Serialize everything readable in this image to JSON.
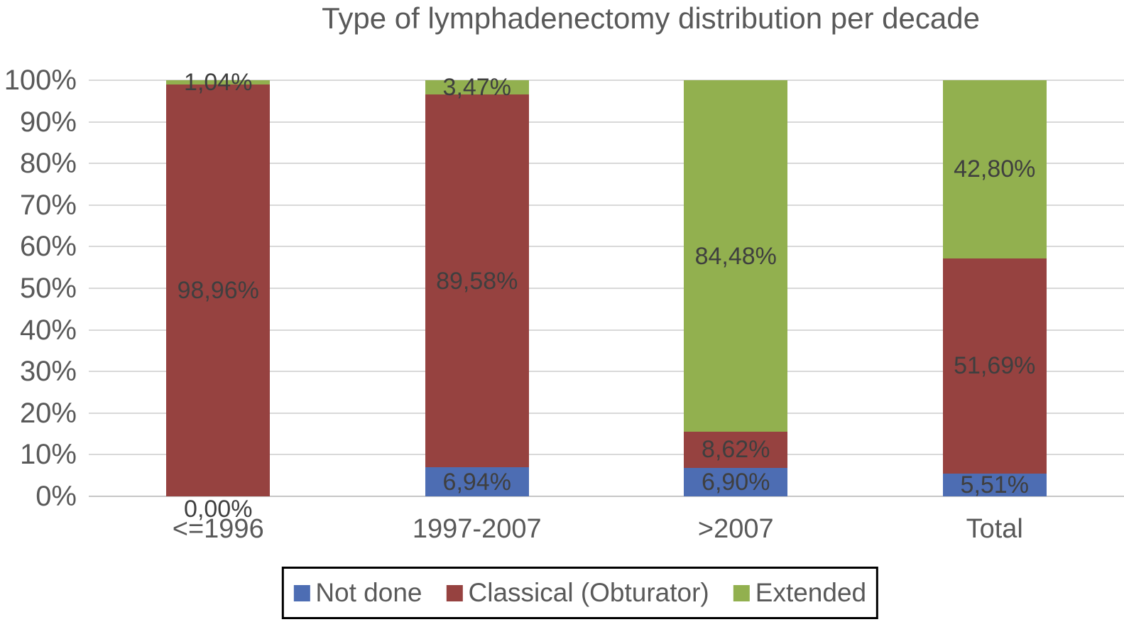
{
  "chart_data": {
    "type": "bar",
    "stacked": true,
    "orientation": "vertical",
    "title": "Type of lymphadenectomy distribution per decade",
    "categories": [
      "<=1996",
      "1997-2007",
      ">2007",
      "Total"
    ],
    "series": [
      {
        "name": "Not done",
        "color": "#4d6db3",
        "values": [
          0.0,
          6.94,
          6.9,
          5.51
        ],
        "labels": [
          "0,00%",
          "6,94%",
          "6,90%",
          "5,51%"
        ]
      },
      {
        "name": "Classical (Obturator)",
        "color": "#964240",
        "values": [
          98.96,
          89.58,
          8.62,
          51.69
        ],
        "labels": [
          "98,96%",
          "89,58%",
          "8,62%",
          "51,69%"
        ]
      },
      {
        "name": "Extended",
        "color": "#92b04f",
        "values": [
          1.04,
          3.47,
          84.48,
          42.8
        ],
        "labels": [
          "1,04%",
          "3,47%",
          "84,48%",
          "42,80%"
        ]
      }
    ],
    "y_ticks": [
      "100%",
      "90%",
      "80%",
      "70%",
      "60%",
      "50%",
      "40%",
      "30%",
      "20%",
      "10%",
      "0%"
    ],
    "ylim": [
      0,
      100
    ],
    "grid": true,
    "gridline_color": "#d9d9d9",
    "label_color": "#3f3f3f",
    "axis_text_color": "#595959",
    "legend_position": "bottom",
    "decimal_separator": ","
  }
}
